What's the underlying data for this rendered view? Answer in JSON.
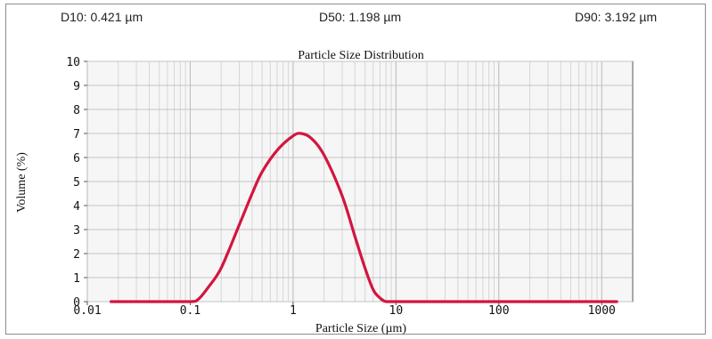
{
  "stats": {
    "d10": "D10: 0.421 µm",
    "d50": "D50: 1.198 µm",
    "d90": "D90: 3.192 µm"
  },
  "chart_data": {
    "type": "line",
    "title": "Particle Size Distribution",
    "xlabel": "Particle Size (µm)",
    "ylabel": "Volume (%)",
    "xscale": "log",
    "xlim": [
      0.01,
      2000
    ],
    "ylim": [
      0,
      10
    ],
    "x_ticks": [
      0.01,
      0.1,
      1,
      10,
      100,
      1000
    ],
    "x_tick_labels": [
      "0.01",
      "0.1",
      "1",
      "10",
      "100",
      "1000"
    ],
    "y_ticks": [
      0,
      1,
      2,
      3,
      4,
      5,
      6,
      7,
      8,
      9,
      10
    ],
    "y_tick_labels": [
      "0",
      "1",
      "2",
      "3",
      "4",
      "5",
      "6",
      "7",
      "8",
      "9",
      "10"
    ],
    "grid": true,
    "series": [
      {
        "color": "#d3153f",
        "x": [
          0.017,
          0.05,
          0.1,
          0.12,
          0.15,
          0.2,
          0.3,
          0.4,
          0.5,
          0.7,
          1.0,
          1.2,
          1.5,
          2.0,
          3.0,
          4.0,
          5.0,
          6.0,
          7.0,
          8.0,
          10,
          20,
          50,
          100,
          500,
          1400
        ],
        "y": [
          0,
          0,
          0,
          0.1,
          0.6,
          1.4,
          3.2,
          4.5,
          5.4,
          6.3,
          6.9,
          7.0,
          6.8,
          6.1,
          4.4,
          2.7,
          1.4,
          0.5,
          0.15,
          0,
          0,
          0,
          0,
          0,
          0,
          0
        ]
      }
    ]
  }
}
